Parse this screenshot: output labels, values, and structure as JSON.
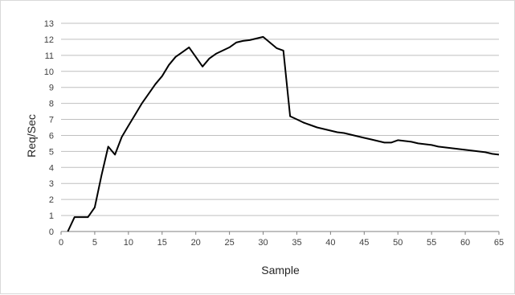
{
  "chart_data": {
    "type": "line",
    "xlabel": "Sample",
    "ylabel": "Req/Sec",
    "xlim": [
      0,
      65
    ],
    "ylim": [
      0,
      13
    ],
    "xticks": [
      0,
      5,
      10,
      15,
      20,
      25,
      30,
      35,
      40,
      45,
      50,
      55,
      60,
      65
    ],
    "yticks": [
      0,
      1,
      2,
      3,
      4,
      5,
      6,
      7,
      8,
      9,
      10,
      11,
      12,
      13
    ],
    "grid": "horizontal",
    "legend": "none",
    "line_color": "#000000",
    "series": [
      {
        "x": [
          1,
          2,
          3,
          4,
          5,
          6,
          7,
          8,
          9,
          10,
          11,
          12,
          13,
          14,
          15,
          16,
          17,
          18,
          19,
          20,
          21,
          22,
          23,
          24,
          25,
          26,
          27,
          28,
          29,
          30,
          31,
          32,
          33,
          34,
          35,
          36,
          37,
          38,
          39,
          40,
          41,
          42,
          43,
          44,
          45,
          46,
          47,
          48,
          49,
          50,
          51,
          52,
          53,
          54,
          55,
          56,
          57,
          58,
          59,
          60,
          61,
          62,
          63,
          64,
          65
        ],
        "values": [
          0,
          0.9,
          0.9,
          0.9,
          1.5,
          3.5,
          5.3,
          4.8,
          5.9,
          6.6,
          7.3,
          8.0,
          8.6,
          9.2,
          9.7,
          10.4,
          10.9,
          11.2,
          11.5,
          10.9,
          10.3,
          10.8,
          11.1,
          11.3,
          11.5,
          11.8,
          11.9,
          11.95,
          12.05,
          12.15,
          11.8,
          11.45,
          11.3,
          7.2,
          7.0,
          6.8,
          6.65,
          6.5,
          6.4,
          6.3,
          6.2,
          6.15,
          6.05,
          5.95,
          5.85,
          5.75,
          5.65,
          5.55,
          5.55,
          5.7,
          5.65,
          5.6,
          5.5,
          5.45,
          5.4,
          5.3,
          5.25,
          5.2,
          5.15,
          5.1,
          5.05,
          5.0,
          4.95,
          4.85,
          4.8
        ]
      }
    ]
  }
}
